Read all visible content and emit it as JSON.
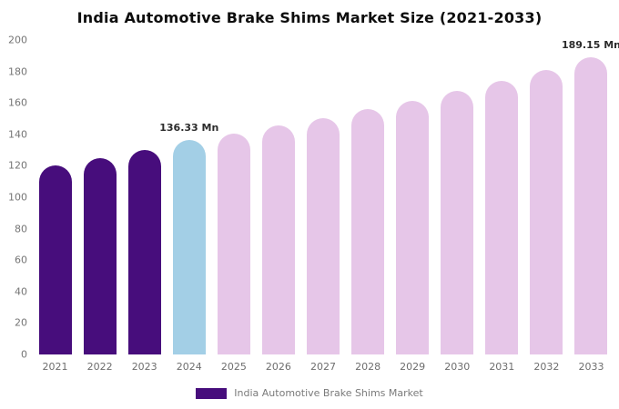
{
  "chart_data": {
    "type": "bar",
    "title": "India Automotive Brake Shims Market Size (2021-2033)",
    "xlabel": "",
    "ylabel": "",
    "unit": "Mn",
    "categories": [
      "2021",
      "2022",
      "2023",
      "2024",
      "2025",
      "2026",
      "2027",
      "2028",
      "2029",
      "2030",
      "2031",
      "2032",
      "2033"
    ],
    "values": [
      120.5,
      125,
      130,
      136.33,
      140.5,
      145.5,
      150.5,
      156,
      161.5,
      167.5,
      174,
      181,
      189.15
    ],
    "ylim": [
      0,
      200
    ],
    "ytick_step": 20,
    "grid": false,
    "legend_position": "bottom",
    "legend": "India Automotive Brake Shims Market",
    "colors": {
      "historical": "#470d7c",
      "current": "#a3cfe6",
      "forecast": "#e6c6e8"
    },
    "bar_styles": [
      "historical",
      "historical",
      "historical",
      "current",
      "forecast",
      "forecast",
      "forecast",
      "forecast",
      "forecast",
      "forecast",
      "forecast",
      "forecast",
      "forecast"
    ],
    "annotations": [
      {
        "index": 3,
        "label": "136.33 Mn"
      },
      {
        "index": 12,
        "label": "189.15 Mn"
      }
    ]
  }
}
